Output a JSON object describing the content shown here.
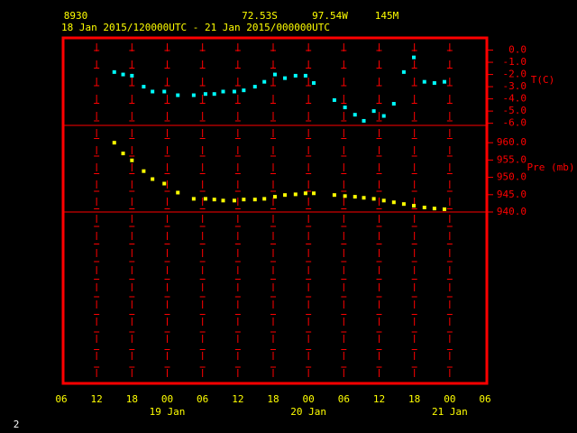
{
  "chart_data": {
    "type": "scatter",
    "station": "8930",
    "latitude": "72.53S",
    "longitude": "97.54W",
    "elevation": "145M",
    "subtitle": "18 Jan 2015/120000UTC - 21 Jan 2015/000000UTC",
    "x": [
      15,
      16.5,
      18,
      20,
      21.5,
      23.5,
      25.8,
      28.5,
      30.5,
      32,
      33.5,
      35.4,
      37,
      38.9,
      40.5,
      42.3,
      44,
      45.8,
      47.5,
      48.9,
      52.4,
      54.2,
      55.9,
      57.4,
      59.1,
      60.8,
      62.5,
      64.2,
      65.9,
      67.7,
      69.4,
      71.1
    ],
    "xlim": [
      6,
      78
    ],
    "xticks": [
      {
        "value": 6,
        "label": "06"
      },
      12,
      18,
      {
        "value": 24,
        "label": "00"
      },
      {
        "value": 30,
        "label": "06"
      },
      {
        "value": 36,
        "label": "12"
      },
      {
        "value": 42,
        "label": "18"
      },
      {
        "value": 48,
        "label": "00"
      },
      {
        "value": 54,
        "label": "06"
      },
      {
        "value": 60,
        "label": "12"
      },
      {
        "value": 66,
        "label": "18"
      },
      {
        "value": 72,
        "label": "00"
      },
      {
        "value": 78,
        "label": "06"
      }
    ],
    "date_labels": [
      {
        "value": 24,
        "label": "19 Jan"
      },
      {
        "value": 48,
        "label": "20 Jan"
      },
      {
        "value": 72,
        "label": "21 Jan"
      }
    ],
    "series": [
      {
        "name": "T(C)",
        "color": "#00ffff",
        "values": [
          -1.8,
          -2.0,
          -2.1,
          -3.0,
          -3.4,
          -3.4,
          -3.7,
          -3.7,
          -3.6,
          -3.6,
          -3.4,
          -3.4,
          -3.3,
          -3.0,
          -2.6,
          -2.0,
          -2.3,
          -2.1,
          -2.1,
          -2.7,
          -4.1,
          -4.7,
          -5.3,
          -5.8,
          -5.0,
          -5.4,
          -4.4,
          -1.8,
          -0.6,
          -2.6,
          -2.7,
          -2.6
        ]
      },
      {
        "name": "Pre (mb)",
        "color": "#ffff00",
        "axis": "y2",
        "values": [
          960.0,
          956.9,
          954.9,
          951.8,
          949.5,
          948.2,
          945.6,
          943.8,
          943.8,
          943.6,
          943.3,
          943.3,
          943.6,
          943.6,
          943.8,
          944.4,
          944.9,
          945.1,
          945.4,
          945.4,
          944.9,
          944.6,
          944.4,
          944.1,
          943.8,
          943.3,
          942.8,
          942.3,
          941.8,
          941.3,
          941.0,
          940.8
        ]
      }
    ],
    "ylim": [
      -6.1,
      1.0
    ],
    "yticks": [
      {
        "value": 0,
        "label": "0.0"
      },
      {
        "value": -1,
        "label": "-1.0"
      },
      {
        "value": -2,
        "label": "-2.0"
      },
      {
        "value": -3,
        "label": "-3.0"
      },
      {
        "value": -4,
        "label": "-4.0"
      },
      {
        "value": -5,
        "label": "-5.0"
      },
      {
        "value": -6,
        "label": "-6.0"
      }
    ],
    "y2lim": [
      940,
      965
    ],
    "y2ticks": [
      {
        "value": 960,
        "label": "960.0"
      },
      {
        "value": 955,
        "label": "955.0"
      },
      {
        "value": 950,
        "label": "950.0"
      },
      {
        "value": 945,
        "label": "945.0"
      },
      {
        "value": 940,
        "label": "940.0"
      }
    ],
    "frame_number": "2"
  }
}
